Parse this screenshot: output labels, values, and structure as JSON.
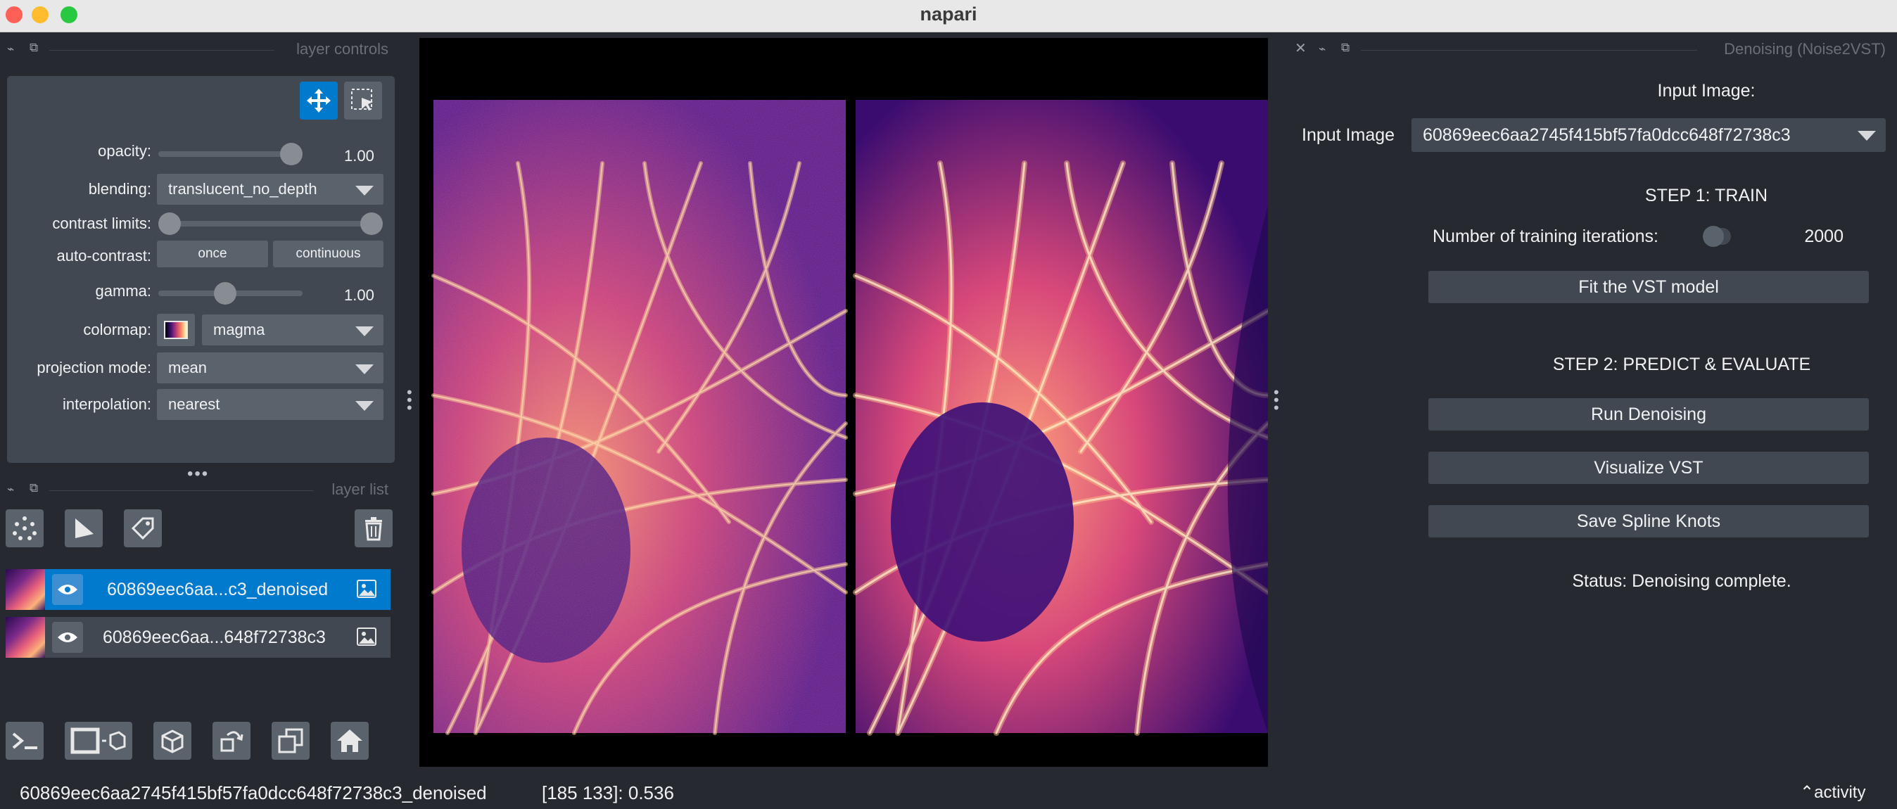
{
  "window": {
    "title": "napari"
  },
  "layer_controls": {
    "header": "layer controls",
    "opacity": {
      "label": "opacity:",
      "value": "1.00",
      "fraction": 1.0
    },
    "blending": {
      "label": "blending:",
      "value": "translucent_no_depth"
    },
    "contrast_limits": {
      "label": "contrast limits:"
    },
    "auto_contrast": {
      "label": "auto-contrast:",
      "once": "once",
      "continuous": "continuous"
    },
    "gamma": {
      "label": "gamma:",
      "value": "1.00"
    },
    "colormap": {
      "label": "colormap:",
      "value": "magma"
    },
    "projection_mode": {
      "label": "projection mode:",
      "value": "mean"
    },
    "interpolation": {
      "label": "interpolation:",
      "value": "nearest"
    }
  },
  "layer_list": {
    "header": "layer list",
    "layers": [
      {
        "name": "60869eec6aa...c3_denoised",
        "selected": true
      },
      {
        "name": "60869eec6aa...648f72738c3",
        "selected": false
      }
    ]
  },
  "dock": {
    "header": "Denoising (Noise2VST)",
    "input_heading": "Input Image:",
    "input_label": "Input Image",
    "input_value": "60869eec6aa2745f415bf57fa0dcc648f72738c3",
    "step1": "STEP 1: TRAIN",
    "iterations_label": "Number of training iterations:",
    "iterations_value": "2000",
    "fit_button": "Fit the VST model",
    "step2": "STEP 2: PREDICT & EVALUATE",
    "run_button": "Run Denoising",
    "visualize_button": "Visualize VST",
    "save_button": "Save Spline Knots",
    "status": "Status: Denoising complete."
  },
  "statusbar": {
    "layer": "60869eec6aa2745f415bf57fa0dcc648f72738c3_denoised",
    "coords": "[185 133]: 0.536",
    "activity": "activity"
  }
}
